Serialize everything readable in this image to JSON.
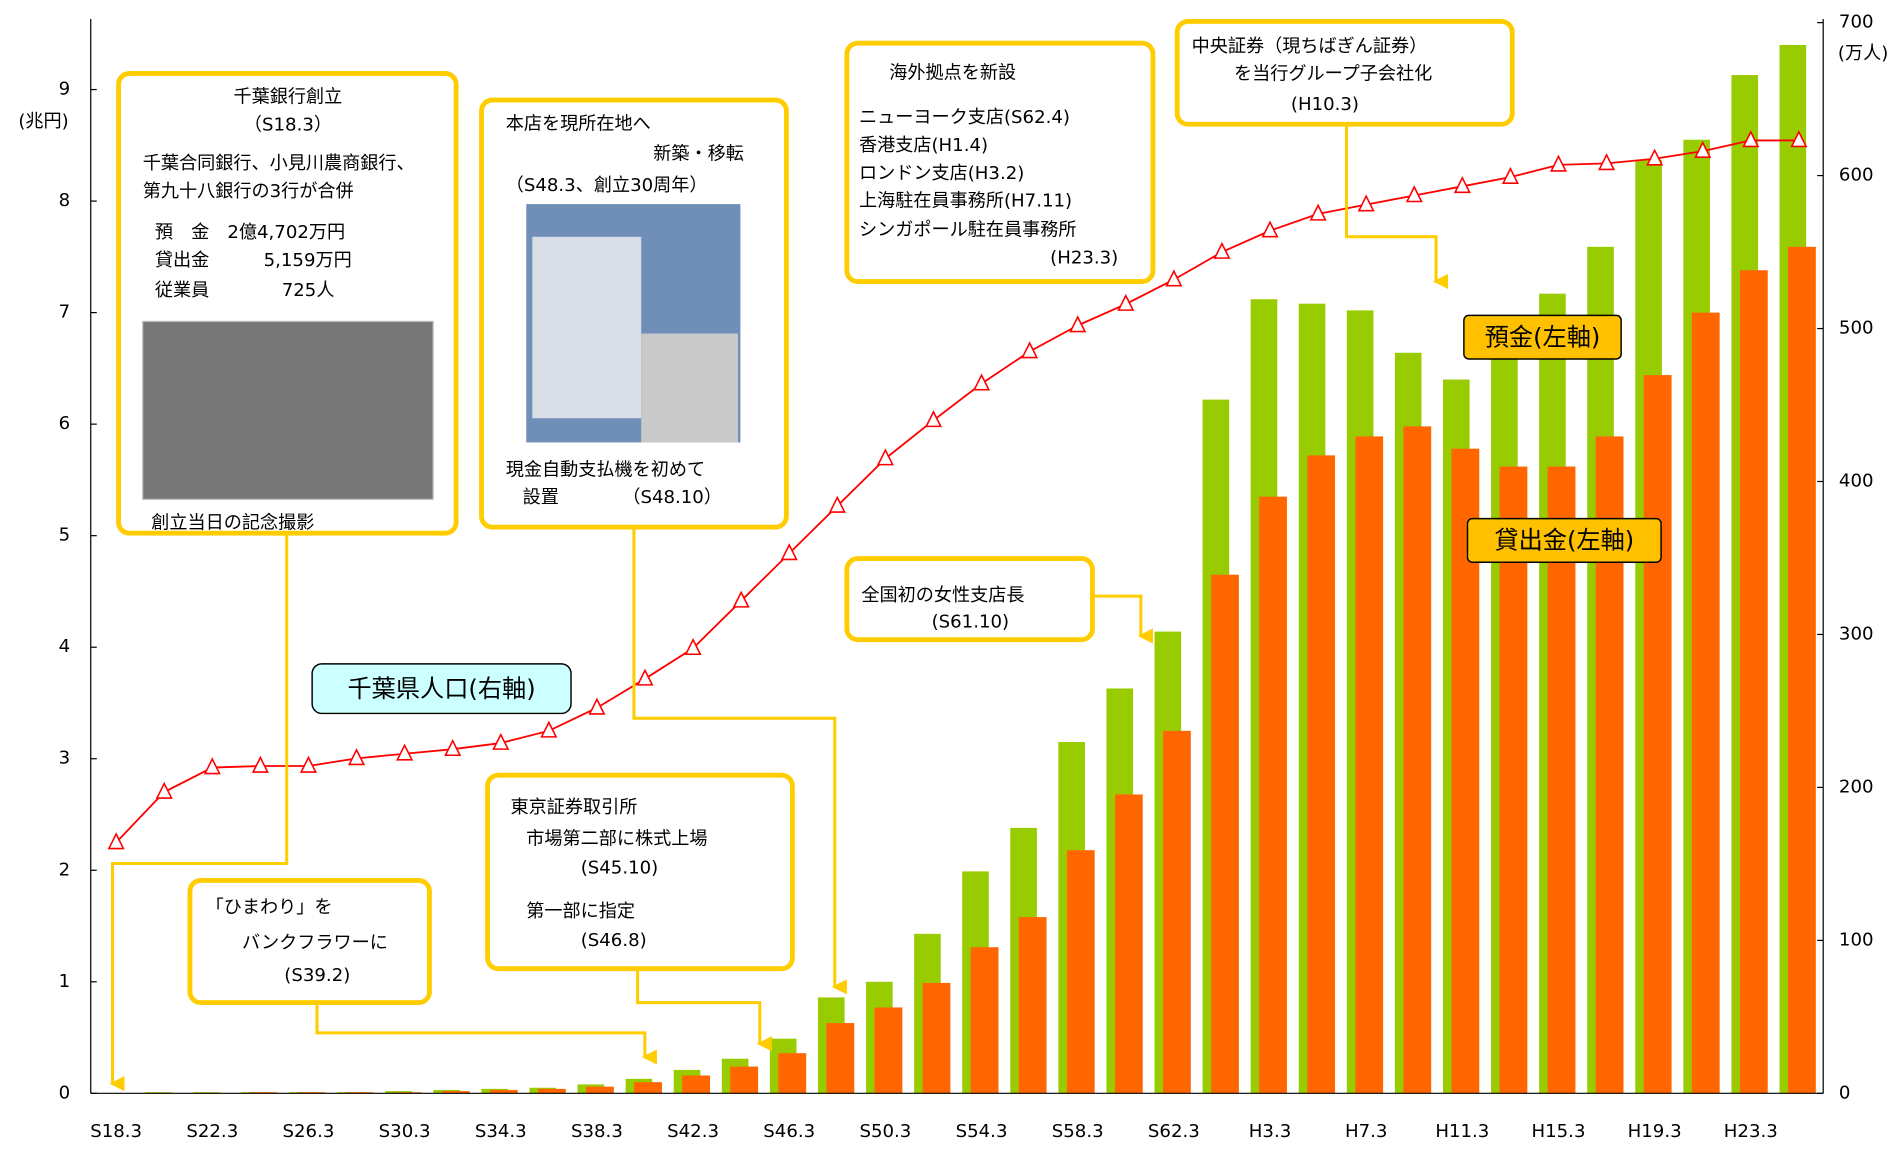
{
  "chart_data": {
    "type": "bar",
    "y_label": "(兆円)",
    "y2_label": "(万人)",
    "categories": [
      "S18.3",
      null,
      "S22.3",
      null,
      "S26.3",
      null,
      "S30.3",
      null,
      "S34.3",
      null,
      "S38.3",
      null,
      "S42.3",
      null,
      "S46.3",
      null,
      "S50.3",
      null,
      "S54.3",
      null,
      "S58.3",
      null,
      "S62.3",
      null,
      "H3.3",
      null,
      "H7.3",
      null,
      "H11.3",
      null,
      "H15.3",
      null,
      "H19.3",
      null,
      "H23.3",
      null
    ],
    "ylim": [
      0,
      9.6
    ],
    "yticks": [
      0,
      1,
      2,
      3,
      4,
      5,
      6,
      7,
      8,
      9
    ],
    "y2lim": [
      0,
      700
    ],
    "y2ticks": [
      0,
      100,
      200,
      300,
      400,
      500,
      600,
      700
    ],
    "series": [
      {
        "name": "預金(左軸)",
        "type": "bar",
        "color": "#99cc00",
        "values": [
          0.0,
          0.01,
          0.01,
          0.01,
          0.01,
          0.01,
          0.02,
          0.03,
          0.04,
          0.05,
          0.08,
          0.13,
          0.21,
          0.31,
          0.49,
          0.86,
          1.0,
          1.43,
          1.99,
          2.38,
          3.15,
          3.63,
          4.14,
          6.22,
          7.12,
          7.08,
          7.02,
          6.64,
          6.4,
          6.85,
          7.17,
          7.59,
          8.37,
          8.55,
          9.13,
          9.4
        ]
      },
      {
        "name": "貸出金(左軸)",
        "type": "bar",
        "color": "#ff6600",
        "values": [
          0.0,
          0.0,
          0.0,
          0.01,
          0.01,
          0.01,
          0.01,
          0.02,
          0.03,
          0.04,
          0.06,
          0.1,
          0.16,
          0.24,
          0.36,
          0.63,
          0.77,
          0.99,
          1.31,
          1.58,
          2.18,
          2.68,
          3.25,
          4.65,
          5.35,
          5.72,
          5.89,
          5.98,
          5.78,
          5.62,
          5.62,
          5.89,
          6.44,
          7.0,
          7.38,
          7.59
        ]
      },
      {
        "name": "千葉県人口(右軸)",
        "type": "line",
        "axis": "y2",
        "color": "#ff0000",
        "values": [
          164,
          197,
          213,
          214,
          214,
          219,
          222,
          225,
          229,
          237,
          252,
          271,
          291,
          322,
          353,
          384,
          415,
          440,
          464,
          485,
          502,
          516,
          532,
          550,
          564,
          575,
          581,
          587,
          593,
          599,
          607,
          608,
          611,
          616,
          623,
          623
        ]
      }
    ],
    "annotations": [
      {
        "lines": [
          "千葉銀行創立",
          "（S18.3）",
          "千葉合同銀行、小見川農商銀行、",
          "第九十八銀行の3行が合併",
          "預　金　2億4,702万円",
          "貸出金　　　5,159万円",
          "従業員　　　　725人",
          "創立当日の記念撮影"
        ]
      },
      {
        "lines": [
          "本店を現所在地へ",
          "新築・移転",
          "（S48.3、創立30周年）",
          "現金自動支払機を初めて",
          "設置　　　　（S48.10）"
        ]
      },
      {
        "lines": [
          "海外拠点を新設",
          "ニューヨーク支店(S62.4)",
          "香港支店(H1.4)",
          "ロンドン支店(H3.2)",
          "上海駐在員事務所(H7.11)",
          "シンガポール駐在員事務所",
          "(H23.3)"
        ]
      },
      {
        "lines": [
          "中央証券（現ちばぎん証券）",
          "を当行グループ子会社化",
          "(H10.3)"
        ]
      },
      {
        "lines": [
          "全国初の女性支店長",
          "(S61.10)"
        ]
      },
      {
        "lines": [
          "東京証券取引所",
          "市場第二部に株式上場",
          "(S45.10)",
          "第一部に指定",
          "(S46.8)"
        ]
      },
      {
        "lines": [
          "「ひまわり」を",
          "バンクフラワーに",
          "(S39.2)"
        ]
      }
    ]
  }
}
